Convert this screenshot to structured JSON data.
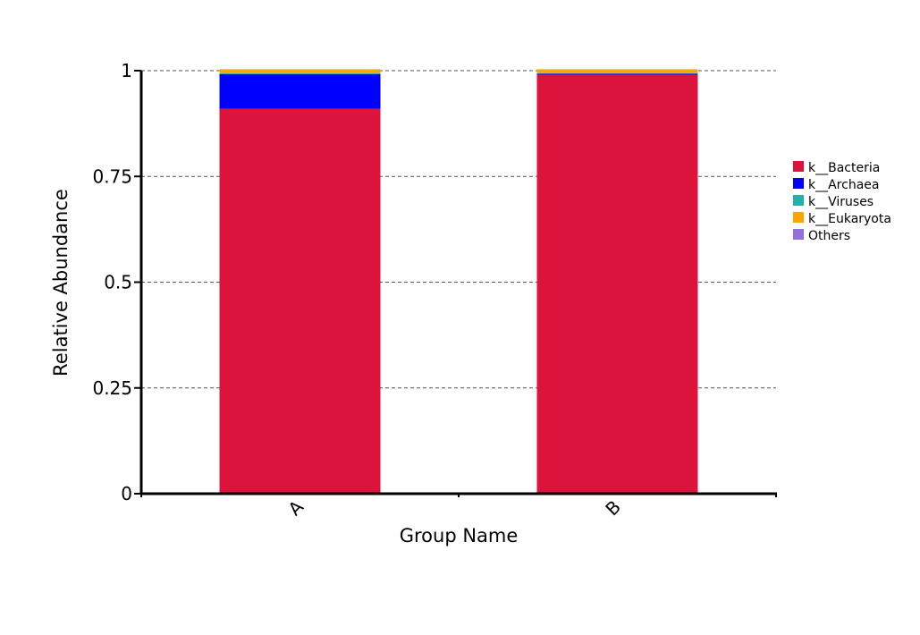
{
  "chart_data": {
    "type": "bar",
    "stacked": true,
    "categories": [
      "A",
      "B"
    ],
    "series": [
      {
        "name": "k__Bacteria",
        "color": "#dc143c",
        "values": [
          0.91,
          0.99
        ]
      },
      {
        "name": "k__Archaea",
        "color": "#0000ff",
        "values": [
          0.082,
          0.003
        ]
      },
      {
        "name": "k__Viruses",
        "color": "#20b2aa",
        "values": [
          0.002,
          0.001
        ]
      },
      {
        "name": "k__Eukaryota",
        "color": "#ffa500",
        "values": [
          0.008,
          0.008
        ]
      },
      {
        "name": "Others",
        "color": "#9370db",
        "values": [
          0.001,
          0.001
        ]
      }
    ],
    "xlabel": "Group Name",
    "ylabel": "Relative Abundance",
    "ylim": [
      0,
      1
    ],
    "yticks": [
      0,
      0.25,
      0.5,
      0.75,
      1
    ],
    "ytick_labels": [
      "0",
      "0.25",
      "0.5",
      "0.75",
      "1"
    ],
    "grid": "dashed horizontal",
    "legend_position": "right"
  }
}
